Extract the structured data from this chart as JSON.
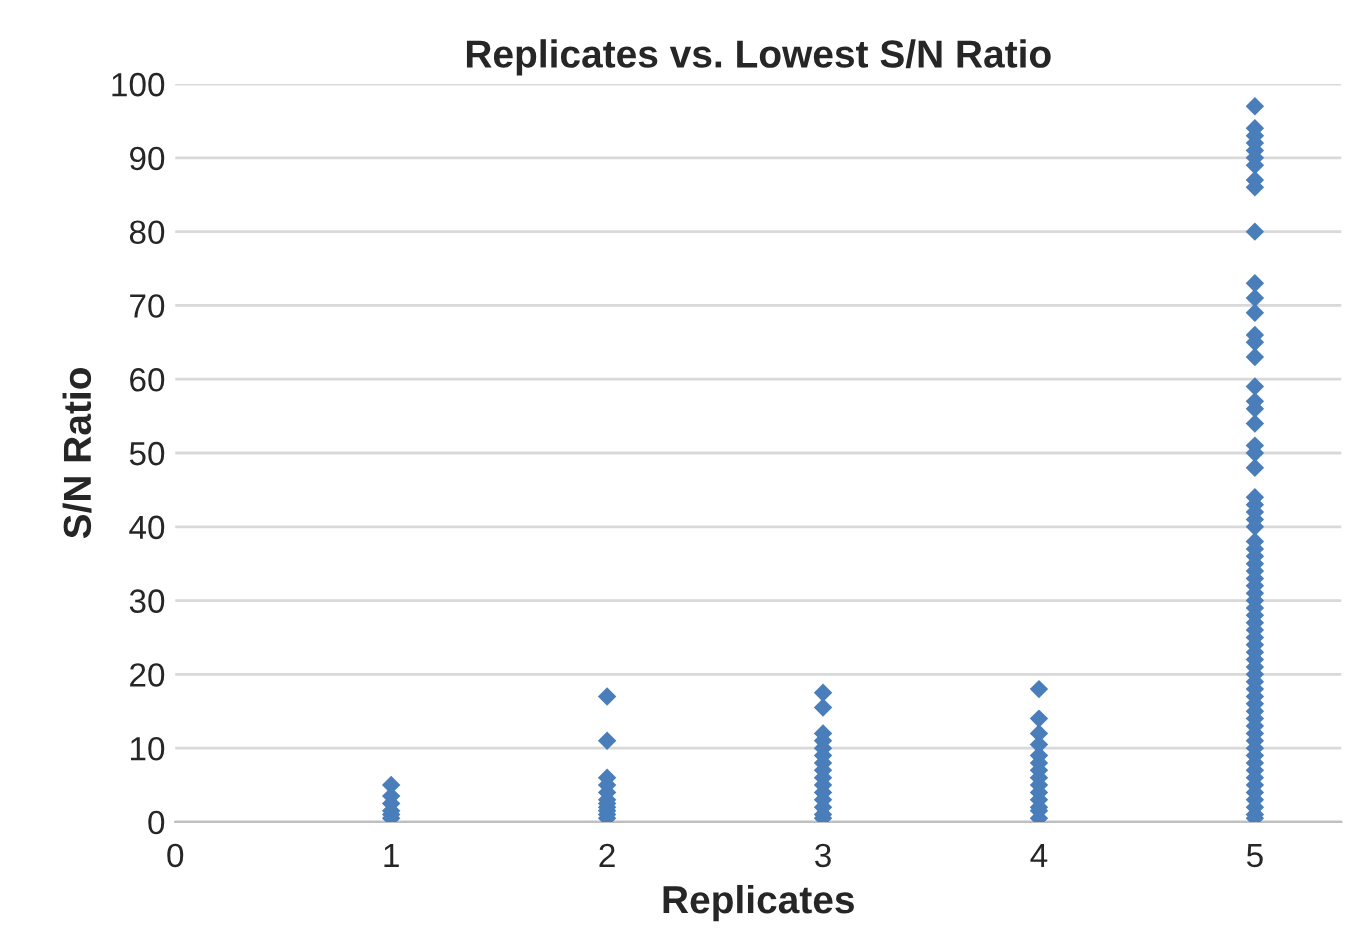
{
  "chart_data": {
    "type": "scatter",
    "title": "Replicates vs. Lowest S/N Ratio",
    "xlabel": "Replicates",
    "ylabel": "S/N Ratio",
    "series": [
      {
        "color": "#4a7ebb",
        "x": [
          1,
          1,
          1,
          1,
          1,
          1,
          2,
          2,
          2,
          2,
          2,
          2,
          2,
          2,
          2,
          2,
          2,
          3,
          3,
          3,
          3,
          3,
          3,
          3,
          3,
          3,
          3,
          3,
          3,
          3,
          3,
          3,
          4,
          4,
          4,
          4,
          4,
          4,
          4,
          4,
          4,
          4,
          4,
          4,
          4,
          4,
          5,
          5,
          5,
          5,
          5,
          5,
          5,
          5,
          5,
          5,
          5,
          5,
          5,
          5,
          5,
          5,
          5,
          5,
          5,
          5,
          5,
          5,
          5,
          5,
          5,
          5,
          5,
          5,
          5,
          5,
          5,
          5,
          5,
          5,
          5,
          5,
          5,
          5,
          5,
          5,
          5,
          5,
          5,
          5,
          5,
          5,
          5,
          5,
          5,
          5,
          5,
          5,
          5,
          5,
          5,
          5,
          5,
          5,
          5,
          5,
          5,
          5,
          5,
          5,
          5,
          5,
          5
        ],
        "values": [
          5,
          3.5,
          2.5,
          1.5,
          1,
          0.5,
          17,
          11,
          6,
          5,
          4,
          3,
          2.5,
          2,
          1.5,
          1,
          0.5,
          17.5,
          15.5,
          12,
          11,
          10,
          9,
          8,
          7,
          6,
          5,
          4,
          3,
          2,
          1,
          0.5,
          18,
          14,
          12,
          10.5,
          9,
          8,
          7,
          6,
          5,
          4,
          3,
          2,
          1.5,
          0.5,
          97,
          94,
          93,
          92,
          91,
          90,
          89,
          87,
          86,
          80,
          73,
          71,
          69,
          66,
          65,
          63,
          59,
          57,
          56,
          54,
          51,
          50,
          48,
          44,
          43,
          42,
          41,
          40,
          38,
          37,
          36,
          35,
          34,
          33,
          32,
          31,
          30,
          29,
          28,
          27,
          26,
          25,
          24,
          23,
          22,
          21,
          20,
          19,
          18,
          17,
          16,
          15,
          14,
          13,
          12,
          11,
          10,
          9,
          8,
          7,
          6,
          5,
          4,
          3,
          2,
          1,
          0.5
        ]
      }
    ],
    "xlim": [
      0,
      5.4
    ],
    "xticks": [
      0,
      1,
      2,
      3,
      4,
      5
    ],
    "ylim": [
      0,
      100
    ],
    "yticks": [
      0,
      10,
      20,
      30,
      40,
      50,
      60,
      70,
      80,
      90,
      100
    ],
    "grid": "y",
    "marker": "diamond",
    "legend": false
  }
}
